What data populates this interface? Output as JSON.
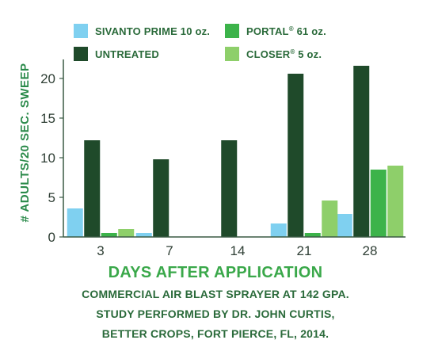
{
  "chart_data": {
    "type": "bar",
    "categories": [
      "3",
      "7",
      "14",
      "21",
      "28"
    ],
    "series": [
      {
        "name": "SIVANTO PRIME 10 oz.",
        "color": "#7fd0f0",
        "values": [
          3.6,
          0.5,
          0,
          1.7,
          2.9
        ]
      },
      {
        "name": "UNTREATED",
        "color": "#1f4a2a",
        "values": [
          12.2,
          9.8,
          12.2,
          20.6,
          21.6
        ]
      },
      {
        "name": "PORTAL® 61 oz.",
        "color": "#3cb34a",
        "values": [
          0.5,
          0,
          0,
          0.5,
          8.5
        ]
      },
      {
        "name": "CLOSER® 5 oz.",
        "color": "#8ecf6a",
        "values": [
          1.0,
          0,
          0,
          4.6,
          9.0
        ]
      }
    ],
    "legend": {
      "placement": "top",
      "rows": [
        [
          {
            "main": "SIVANTO PRIME 10 oz.",
            "sup": "",
            "rest": ""
          },
          {
            "main": "PORTAL",
            "sup": "®",
            "rest": " 61 oz."
          }
        ],
        [
          {
            "main": "UNTREATED",
            "sup": "",
            "rest": ""
          },
          {
            "main": "CLOSER",
            "sup": "®",
            "rest": " 5 oz."
          }
        ]
      ]
    },
    "xlabel": "DAYS AFTER APPLICATION",
    "ylabel": "# ADULTS/20 SEC. SWEEP",
    "ylim": [
      0,
      21.6
    ],
    "yticks": [
      0,
      5,
      10,
      15,
      20
    ],
    "grid": false,
    "caption": [
      "COMMERCIAL AIR BLAST SPRAYER AT 142 GPA.",
      "STUDY PERFORMED BY DR. JOHN CURTIS,",
      "BETTER CROPS, FORT PIERCE, FL, 2014."
    ]
  }
}
